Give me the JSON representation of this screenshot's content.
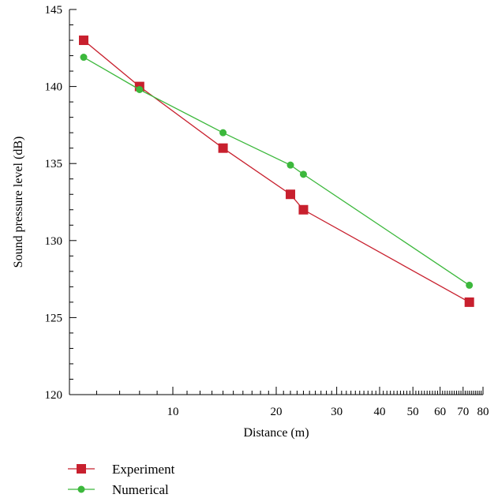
{
  "chart_data": {
    "type": "line",
    "xscale": "log",
    "xlabel": "Distance (m)",
    "ylabel": "Sound pressure level (dB)",
    "xlim": [
      5,
      80
    ],
    "ylim": [
      120,
      145
    ],
    "grid": false,
    "legend_position": "bottom-left",
    "x_major_ticks": [
      10,
      20,
      30,
      40,
      50,
      60,
      70,
      80
    ],
    "x_tick_labels": [
      "10",
      "20",
      "30",
      "40",
      "50",
      "60",
      "70",
      "80"
    ],
    "y_ticks": [
      120,
      125,
      130,
      135,
      140,
      145
    ],
    "y_tick_labels": [
      "120",
      "125",
      "130",
      "135",
      "140",
      "145"
    ],
    "series": [
      {
        "name": "Experiment",
        "color": "#c8202e",
        "marker": "square",
        "x": [
          5.5,
          8.0,
          14.0,
          22.0,
          24.0,
          73.0
        ],
        "y": [
          143.0,
          140.0,
          136.0,
          133.0,
          132.0,
          126.0
        ]
      },
      {
        "name": "Numerical",
        "color": "#3cb83c",
        "marker": "circle",
        "x": [
          5.5,
          8.0,
          14.0,
          22.0,
          24.0,
          73.0
        ],
        "y": [
          141.9,
          139.8,
          137.0,
          134.9,
          134.3,
          127.1
        ]
      }
    ]
  }
}
